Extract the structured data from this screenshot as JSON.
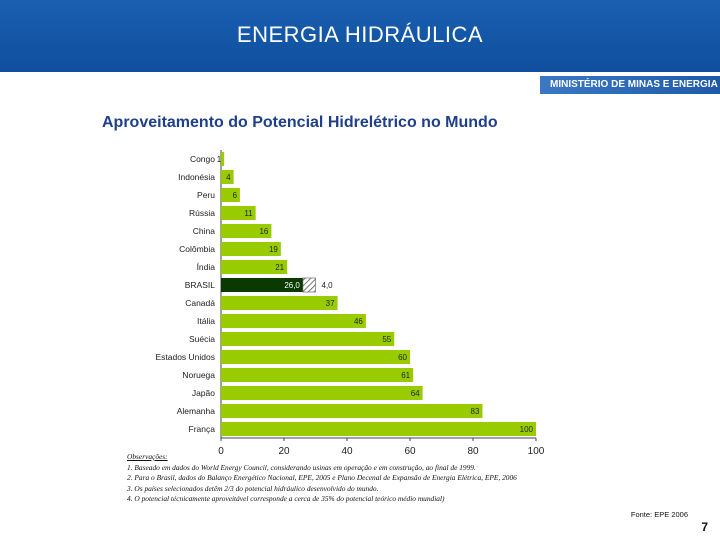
{
  "header": {
    "title": "ENERGIA HIDRÁULICA",
    "ministry": "MINISTÉRIO DE MINAS E ENERGIA"
  },
  "chart_data": {
    "type": "bar",
    "orientation": "horizontal",
    "title": "Aproveitamento do Potencial Hidrelétrico no Mundo",
    "categories": [
      "Congo",
      "Indonésia",
      "Peru",
      "Rússia",
      "China",
      "Colômbia",
      "Índia",
      "BRASIL",
      "Canadá",
      "Itália",
      "Suécia",
      "Estados Unidos",
      "Noruega",
      "Japão",
      "Alemanha",
      "França"
    ],
    "series": [
      {
        "values": [
          1,
          4,
          6,
          11,
          16,
          19,
          21,
          26.0,
          37,
          46,
          55,
          60,
          61,
          64,
          83,
          100
        ],
        "labels": [
          "1",
          "4",
          "6",
          "11",
          "16",
          "19",
          "21",
          "26,0",
          "37",
          "46",
          "55",
          "60",
          "61",
          "64",
          "83",
          "100"
        ]
      }
    ],
    "brasil_extra": {
      "value": 4.0,
      "label": "4,0"
    },
    "xlim": [
      0,
      100
    ],
    "xticks": [
      "0",
      "20",
      "40",
      "60",
      "80",
      "100"
    ],
    "grid": false,
    "colors": {
      "bar": "#99cc00",
      "brasil": "#0a3a00",
      "hatch": "#555555"
    }
  },
  "notes": {
    "heading": "Observações:",
    "lines": [
      "1. Baseado em dados do World Energy Council, considerando usinas em operação e em construção, ao final de 1999.",
      "2. Para o Brasil, dados do Balanço Energético Nacional, EPE, 2005 e Plano Decenal de Expansão de Energia Elétrica, EPE, 2006",
      "3. Os países selecionados detêm 2/3 do potencial hidráulico desenvolvido do mundo.",
      "4. O potencial técnicamente aproveitável corresponde a cerca de 35% do potencial teórico médio mundial)"
    ]
  },
  "source": "Fonte: EPE 2006",
  "page_number": "7"
}
